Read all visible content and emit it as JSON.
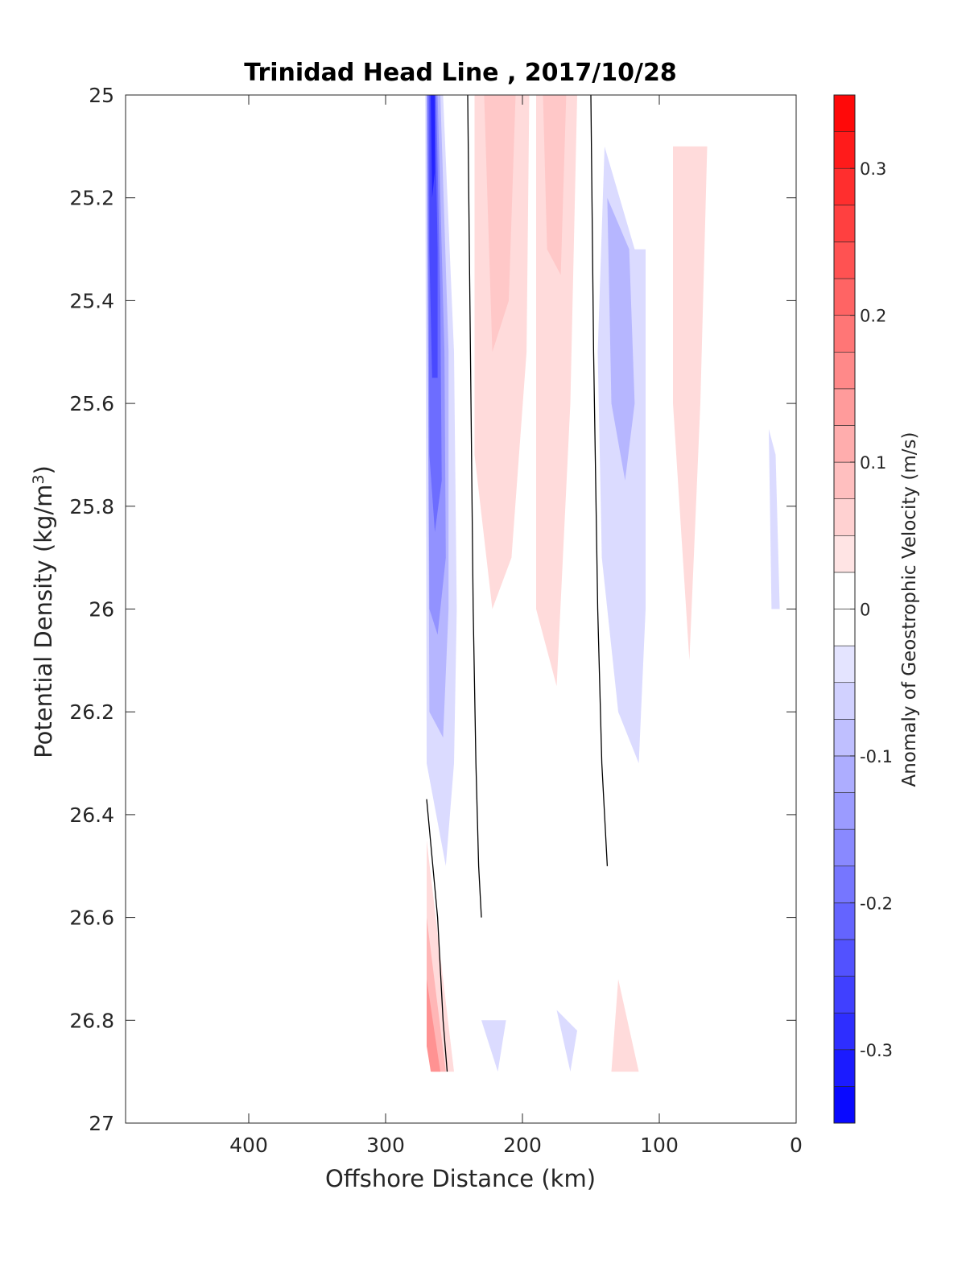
{
  "chart_data": {
    "type": "contour",
    "title": "Trinidad Head Line , 2017/10/28",
    "xlabel": "Offshore Distance (km)",
    "ylabel": "Potential Density (kg/m",
    "ylabel_sup": "3",
    "ylabel_end": ")",
    "colorbar_label": "Anomaly of Geostrophic Velocity (m/s)",
    "xlim": [
      490,
      0
    ],
    "ylim": [
      25,
      27
    ],
    "x_ticks": [
      400,
      300,
      200,
      100,
      0
    ],
    "y_ticks": [
      25,
      25.2,
      25.4,
      25.6,
      25.8,
      26,
      26.2,
      26.4,
      26.6,
      26.8,
      27
    ],
    "x_tick_labels": [
      "400",
      "300",
      "200",
      "100",
      "0"
    ],
    "y_tick_labels": [
      "25",
      "25.2",
      "25.4",
      "25.6",
      "25.8",
      "26",
      "26.2",
      "26.4",
      "26.6",
      "26.8",
      "27"
    ],
    "colorbar": {
      "clim": [
        -0.35,
        0.35
      ],
      "step": 0.025,
      "ticks": [
        0.3,
        0.2,
        0.1,
        0,
        -0.1,
        -0.2,
        -0.3
      ],
      "tick_labels": [
        "0.3",
        "0.2",
        "0.1",
        "0",
        "-0.1",
        "-0.2",
        "-0.3"
      ],
      "colormap": "blue-white-red",
      "color_low": "#0000ff",
      "color_high": "#ff0000"
    },
    "filled_regions": [
      {
        "value": -0.05,
        "points": [
          [
            271,
            25.0
          ],
          [
            258,
            25.0
          ],
          [
            250,
            25.5
          ],
          [
            248,
            26.0
          ],
          [
            250,
            26.3
          ],
          [
            256,
            26.5
          ],
          [
            270,
            26.3
          ]
        ]
      },
      {
        "value": -0.1,
        "points": [
          [
            270,
            25.0
          ],
          [
            260,
            25.0
          ],
          [
            254,
            25.5
          ],
          [
            254,
            26.0
          ],
          [
            258,
            26.25
          ],
          [
            268,
            26.2
          ]
        ]
      },
      {
        "value": -0.15,
        "points": [
          [
            270,
            25.0
          ],
          [
            262,
            25.0
          ],
          [
            257,
            25.5
          ],
          [
            256,
            25.9
          ],
          [
            262,
            26.05
          ],
          [
            268,
            26.0
          ]
        ]
      },
      {
        "value": -0.2,
        "points": [
          [
            269,
            25.0
          ],
          [
            263,
            25.0
          ],
          [
            260,
            25.4
          ],
          [
            259,
            25.75
          ],
          [
            264,
            25.85
          ],
          [
            268,
            25.7
          ]
        ]
      },
      {
        "value": -0.25,
        "points": [
          [
            268,
            25.0
          ],
          [
            264,
            25.0
          ],
          [
            262,
            25.3
          ],
          [
            262,
            25.55
          ],
          [
            266,
            25.55
          ],
          [
            268,
            25.3
          ]
        ]
      },
      {
        "value": -0.3,
        "points": [
          [
            267,
            25.0
          ],
          [
            264,
            25.0
          ],
          [
            264,
            25.15
          ],
          [
            266,
            25.2
          ]
        ]
      },
      {
        "value": -0.05,
        "points": [
          [
            140,
            25.1
          ],
          [
            118,
            25.3
          ],
          [
            110,
            25.3
          ],
          [
            110,
            26.0
          ],
          [
            115,
            26.3
          ],
          [
            130,
            26.2
          ],
          [
            142,
            25.9
          ],
          [
            145,
            25.5
          ]
        ]
      },
      {
        "value": -0.1,
        "points": [
          [
            138,
            25.2
          ],
          [
            122,
            25.3
          ],
          [
            118,
            25.6
          ],
          [
            125,
            25.75
          ],
          [
            135,
            25.6
          ]
        ]
      },
      {
        "value": -0.05,
        "points": [
          [
            20,
            25.65
          ],
          [
            15,
            25.7
          ],
          [
            12,
            26.0
          ],
          [
            18,
            26.0
          ]
        ]
      },
      {
        "value": -0.05,
        "points": [
          [
            230,
            26.8
          ],
          [
            218,
            26.9
          ],
          [
            212,
            26.8
          ]
        ]
      },
      {
        "value": -0.05,
        "points": [
          [
            175,
            26.78
          ],
          [
            165,
            26.9
          ],
          [
            160,
            26.82
          ]
        ]
      },
      {
        "value": 0.05,
        "points": [
          [
            235,
            25.0
          ],
          [
            195,
            25.0
          ],
          [
            197,
            25.5
          ],
          [
            208,
            25.9
          ],
          [
            222,
            26.0
          ],
          [
            235,
            25.7
          ]
        ]
      },
      {
        "value": 0.05,
        "points": [
          [
            190,
            25.0
          ],
          [
            160,
            25.0
          ],
          [
            165,
            25.6
          ],
          [
            175,
            26.15
          ],
          [
            190,
            26.0
          ]
        ]
      },
      {
        "value": 0.05,
        "points": [
          [
            90,
            25.1
          ],
          [
            65,
            25.1
          ],
          [
            70,
            25.6
          ],
          [
            78,
            26.1
          ],
          [
            90,
            25.6
          ]
        ]
      },
      {
        "value": 0.075,
        "points": [
          [
            228,
            25.0
          ],
          [
            205,
            25.0
          ],
          [
            210,
            25.4
          ],
          [
            222,
            25.5
          ]
        ]
      },
      {
        "value": 0.075,
        "points": [
          [
            185,
            25.0
          ],
          [
            168,
            25.0
          ],
          [
            172,
            25.35
          ],
          [
            182,
            25.3
          ]
        ]
      },
      {
        "value": 0.05,
        "points": [
          [
            270,
            26.45
          ],
          [
            250,
            26.9
          ],
          [
            265,
            26.9
          ],
          [
            270,
            26.85
          ]
        ]
      },
      {
        "value": 0.1,
        "points": [
          [
            270,
            26.6
          ],
          [
            256,
            26.9
          ],
          [
            266,
            26.9
          ],
          [
            270,
            26.85
          ]
        ]
      },
      {
        "value": 0.15,
        "points": [
          [
            270,
            26.72
          ],
          [
            260,
            26.9
          ],
          [
            267,
            26.9
          ],
          [
            270,
            26.85
          ]
        ]
      },
      {
        "value": 0.05,
        "points": [
          [
            130,
            26.72
          ],
          [
            115,
            26.9
          ],
          [
            135,
            26.9
          ]
        ]
      }
    ],
    "contour_lines": [
      {
        "value": 0,
        "points": [
          [
            240,
            25.0
          ],
          [
            238,
            25.5
          ],
          [
            236,
            26.0
          ],
          [
            234,
            26.3
          ],
          [
            232,
            26.5
          ],
          [
            230,
            26.6
          ]
        ]
      },
      {
        "value": 0,
        "points": [
          [
            150,
            25.0
          ],
          [
            148,
            25.5
          ],
          [
            145,
            26.0
          ],
          [
            142,
            26.3
          ],
          [
            138,
            26.5
          ]
        ]
      },
      {
        "value": 0,
        "points": [
          [
            270,
            26.37
          ],
          [
            262,
            26.6
          ],
          [
            258,
            26.8
          ],
          [
            255,
            26.9
          ]
        ]
      }
    ]
  }
}
